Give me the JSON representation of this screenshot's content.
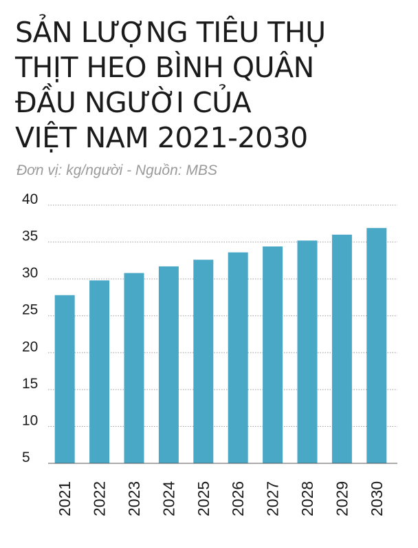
{
  "header": {
    "title_lines": [
      "SẢN LƯỢNG TIÊU THỤ",
      "THỊT HEO BÌNH QUÂN",
      "ĐẦU NGƯỜI CỦA",
      "VIỆT NAM 2021-2030"
    ],
    "subtitle": "Đơn vị: kg/người   -  Nguồn: MBS"
  },
  "colors": {
    "bar": "#4aa8c7",
    "grid": "#9a9a9a",
    "text": "#1a1a1a"
  },
  "chart_data": {
    "type": "bar",
    "categories": [
      "2021",
      "2022",
      "2023",
      "2024",
      "2025",
      "2026",
      "2027",
      "2028",
      "2029",
      "2030"
    ],
    "values": [
      27.8,
      29.8,
      30.8,
      31.7,
      32.6,
      33.6,
      34.4,
      35.2,
      36.0,
      36.9
    ],
    "title": "SẢN LƯỢNG TIÊU THỤ THỊT HEO BÌNH QUÂN ĐẦU NGƯỜI CỦA VIỆT NAM 2021-2030",
    "xlabel": "",
    "ylabel": "",
    "ylim": [
      5,
      40
    ],
    "yticks": [
      5,
      10,
      15,
      20,
      25,
      30,
      35,
      40
    ],
    "grid": true,
    "legend": "none"
  }
}
